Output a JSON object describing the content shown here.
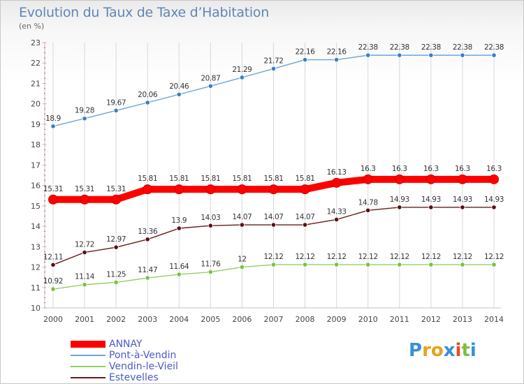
{
  "title": "Evolution du Taux de Taxe d’Habitation",
  "subtitle": "(en %)",
  "logo": {
    "letters": [
      "P",
      "r",
      "o",
      "x",
      "i",
      "t",
      "i"
    ],
    "colors": [
      "#3a8fd6",
      "#e6a21a",
      "#e6a21a",
      "#3a8fd6",
      "#e64a2e",
      "#7fbf3a",
      "#3a8fd6"
    ]
  },
  "chart_data": {
    "type": "line",
    "x": [
      2000,
      2001,
      2002,
      2003,
      2004,
      2005,
      2006,
      2007,
      2008,
      2009,
      2010,
      2011,
      2012,
      2013,
      2014
    ],
    "x_tick_labels": [
      "2000",
      "2001",
      "2002",
      "2003",
      "2004",
      "2005",
      "2006",
      "2007",
      "2008",
      "2009",
      "2010",
      "2011",
      "2012",
      "2013",
      "2014"
    ],
    "ylim": [
      10,
      23
    ],
    "y_ticks": [
      10,
      11,
      12,
      13,
      14,
      15,
      16,
      17,
      18,
      19,
      20,
      21,
      22,
      23
    ],
    "y_tick_labels": [
      "10",
      "11",
      "12",
      "13",
      "14",
      "15",
      "16",
      "17",
      "18",
      "19",
      "20",
      "21",
      "22",
      "23"
    ],
    "legend_position": "bottom-left",
    "series": [
      {
        "name": "ANNAY",
        "color": "#ff0000",
        "marker": "#ff0000",
        "width": "thick",
        "values": [
          15.31,
          15.31,
          15.31,
          15.81,
          15.81,
          15.81,
          15.81,
          15.81,
          15.81,
          16.13,
          16.3,
          16.3,
          16.3,
          16.3,
          16.3
        ],
        "labels": [
          "15.31",
          "15.31",
          "15.31",
          "15.81",
          "15.81",
          "15.81",
          "15.81",
          "15.81",
          "15.81",
          "16.13",
          "16.3",
          "16.3",
          "16.3",
          "16.3",
          "16.3"
        ]
      },
      {
        "name": "Pont-à-Vendin",
        "color": "#6aa6d8",
        "marker": "#3a7fc0",
        "width": "thin",
        "values": [
          18.9,
          19.28,
          19.67,
          20.06,
          20.46,
          20.87,
          21.29,
          21.72,
          22.16,
          22.16,
          22.38,
          22.38,
          22.38,
          22.38,
          22.38
        ],
        "labels": [
          "18.9",
          "19.28",
          "19.67",
          "20.06",
          "20.46",
          "20.87",
          "21.29",
          "21.72",
          "22.16",
          "22.16",
          "22.38",
          "22.38",
          "22.38",
          "22.38",
          "22.38"
        ]
      },
      {
        "name": "Vendin-le-Vieil",
        "color": "#8fd060",
        "marker": "#7cc040",
        "width": "thin",
        "values": [
          10.92,
          11.14,
          11.25,
          11.47,
          11.64,
          11.76,
          12,
          12.12,
          12.12,
          12.12,
          12.12,
          12.12,
          12.12,
          12.12,
          12.12
        ],
        "labels": [
          "10.92",
          "11.14",
          "11.25",
          "11.47",
          "11.64",
          "11.76",
          "12",
          "12.12",
          "12.12",
          "12.12",
          "12.12",
          "12.12",
          "12.12",
          "12.12",
          "12.12"
        ]
      },
      {
        "name": "Estevelles",
        "color": "#6b1a1a",
        "marker": "#5a0f0f",
        "width": "thin",
        "values": [
          12.11,
          12.72,
          12.97,
          13.36,
          13.9,
          14.03,
          14.07,
          14.07,
          14.07,
          14.33,
          14.78,
          14.93,
          14.93,
          14.93,
          14.93
        ],
        "labels": [
          "12.11",
          "12.72",
          "12.97",
          "13.36",
          "13.9",
          "14.03",
          "14.07",
          "14.07",
          "14.07",
          "14.33",
          "14.78",
          "14.93",
          "14.93",
          "14.93",
          "14.93"
        ]
      }
    ]
  }
}
